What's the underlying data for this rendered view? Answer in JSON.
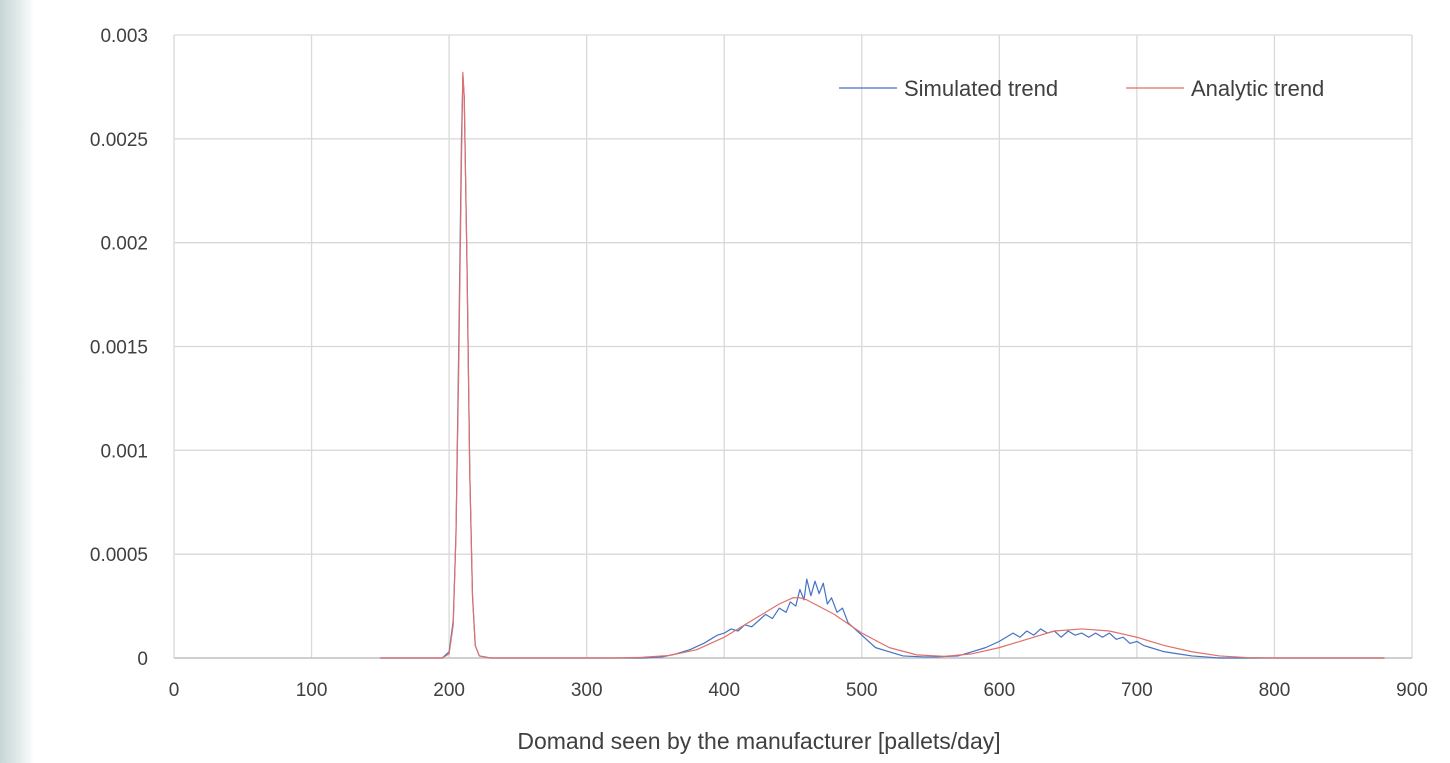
{
  "chart_data": {
    "type": "line",
    "title": "",
    "xlabel": "Domand seen by the manufacturer [pallets/day]",
    "ylabel": "",
    "xlim": [
      0,
      900
    ],
    "ylim": [
      0,
      0.003
    ],
    "x_ticks": [
      "0",
      "100",
      "200",
      "300",
      "400",
      "500",
      "600",
      "700",
      "800",
      "900"
    ],
    "y_ticks": [
      "0",
      "0.0005",
      "0.001",
      "0.0015",
      "0.002",
      "0.0025",
      "0.003"
    ],
    "grid": true,
    "legend_position": "top-right",
    "x_range": [
      150,
      880
    ],
    "series": [
      {
        "name": "Simulated trend",
        "color": "#4472c4",
        "points": [
          [
            150,
            0
          ],
          [
            195,
            0
          ],
          [
            200,
            3e-05
          ],
          [
            203,
            0.00018
          ],
          [
            205,
            0.0006
          ],
          [
            207,
            0.0015
          ],
          [
            209,
            0.0025
          ],
          [
            210,
            0.0028
          ],
          [
            211,
            0.0027
          ],
          [
            213,
            0.0019
          ],
          [
            215,
            0.0009
          ],
          [
            217,
            0.0003
          ],
          [
            219,
            6e-05
          ],
          [
            222,
            1e-05
          ],
          [
            230,
            0
          ],
          [
            340,
            0
          ],
          [
            355,
            5e-06
          ],
          [
            365,
            2e-05
          ],
          [
            375,
            4e-05
          ],
          [
            385,
            7e-05
          ],
          [
            390,
            9e-05
          ],
          [
            395,
            0.00011
          ],
          [
            400,
            0.00012
          ],
          [
            405,
            0.00014
          ],
          [
            410,
            0.00013
          ],
          [
            415,
            0.00016
          ],
          [
            420,
            0.00015
          ],
          [
            425,
            0.00018
          ],
          [
            430,
            0.00021
          ],
          [
            435,
            0.00019
          ],
          [
            440,
            0.00024
          ],
          [
            445,
            0.00022
          ],
          [
            448,
            0.00027
          ],
          [
            452,
            0.00025
          ],
          [
            455,
            0.00033
          ],
          [
            458,
            0.00028
          ],
          [
            460,
            0.00038
          ],
          [
            463,
            0.0003
          ],
          [
            466,
            0.00037
          ],
          [
            469,
            0.00031
          ],
          [
            472,
            0.00036
          ],
          [
            475,
            0.00026
          ],
          [
            478,
            0.00029
          ],
          [
            482,
            0.00022
          ],
          [
            486,
            0.00024
          ],
          [
            490,
            0.00017
          ],
          [
            495,
            0.00014
          ],
          [
            500,
            0.00011
          ],
          [
            505,
            8e-05
          ],
          [
            510,
            5e-05
          ],
          [
            520,
            3e-05
          ],
          [
            530,
            1e-05
          ],
          [
            545,
            5e-06
          ],
          [
            555,
            5e-06
          ],
          [
            570,
            1e-05
          ],
          [
            580,
            3e-05
          ],
          [
            590,
            5e-05
          ],
          [
            600,
            8e-05
          ],
          [
            605,
            0.0001
          ],
          [
            610,
            0.00012
          ],
          [
            615,
            0.0001
          ],
          [
            620,
            0.00013
          ],
          [
            625,
            0.00011
          ],
          [
            630,
            0.00014
          ],
          [
            635,
            0.00012
          ],
          [
            640,
            0.00013
          ],
          [
            645,
            0.0001
          ],
          [
            650,
            0.00013
          ],
          [
            655,
            0.00011
          ],
          [
            660,
            0.00012
          ],
          [
            665,
            0.0001
          ],
          [
            670,
            0.00012
          ],
          [
            675,
            0.0001
          ],
          [
            680,
            0.00012
          ],
          [
            685,
            9e-05
          ],
          [
            690,
            0.0001
          ],
          [
            695,
            7e-05
          ],
          [
            700,
            8e-05
          ],
          [
            705,
            6e-05
          ],
          [
            710,
            5e-05
          ],
          [
            720,
            3e-05
          ],
          [
            730,
            2e-05
          ],
          [
            740,
            1e-05
          ],
          [
            750,
            5e-06
          ],
          [
            760,
            0
          ],
          [
            880,
            0
          ]
        ]
      },
      {
        "name": "Analytic trend",
        "color": "#e0706a",
        "points": [
          [
            150,
            0
          ],
          [
            195,
            0
          ],
          [
            200,
            2e-05
          ],
          [
            203,
            0.00016
          ],
          [
            205,
            0.0006
          ],
          [
            207,
            0.0014
          ],
          [
            209,
            0.0024
          ],
          [
            210,
            0.00282
          ],
          [
            211,
            0.0027
          ],
          [
            213,
            0.0019
          ],
          [
            215,
            0.0009
          ],
          [
            217,
            0.0003
          ],
          [
            219,
            6e-05
          ],
          [
            222,
            1e-05
          ],
          [
            230,
            0
          ],
          [
            320,
            0
          ],
          [
            340,
            3e-06
          ],
          [
            360,
            1.2e-05
          ],
          [
            380,
            4e-05
          ],
          [
            400,
            0.0001
          ],
          [
            420,
            0.00018
          ],
          [
            440,
            0.00026
          ],
          [
            450,
            0.00029
          ],
          [
            455,
            0.00029
          ],
          [
            460,
            0.00028
          ],
          [
            480,
            0.00021
          ],
          [
            500,
            0.00012
          ],
          [
            520,
            5e-05
          ],
          [
            540,
            1.5e-05
          ],
          [
            560,
            8e-06
          ],
          [
            580,
            2e-05
          ],
          [
            600,
            5e-05
          ],
          [
            620,
            9e-05
          ],
          [
            640,
            0.00013
          ],
          [
            660,
            0.00014
          ],
          [
            680,
            0.00013
          ],
          [
            700,
            0.0001
          ],
          [
            720,
            6e-05
          ],
          [
            740,
            3e-05
          ],
          [
            760,
            1e-05
          ],
          [
            780,
            2e-06
          ],
          [
            800,
            0
          ],
          [
            880,
            0
          ]
        ]
      }
    ]
  }
}
